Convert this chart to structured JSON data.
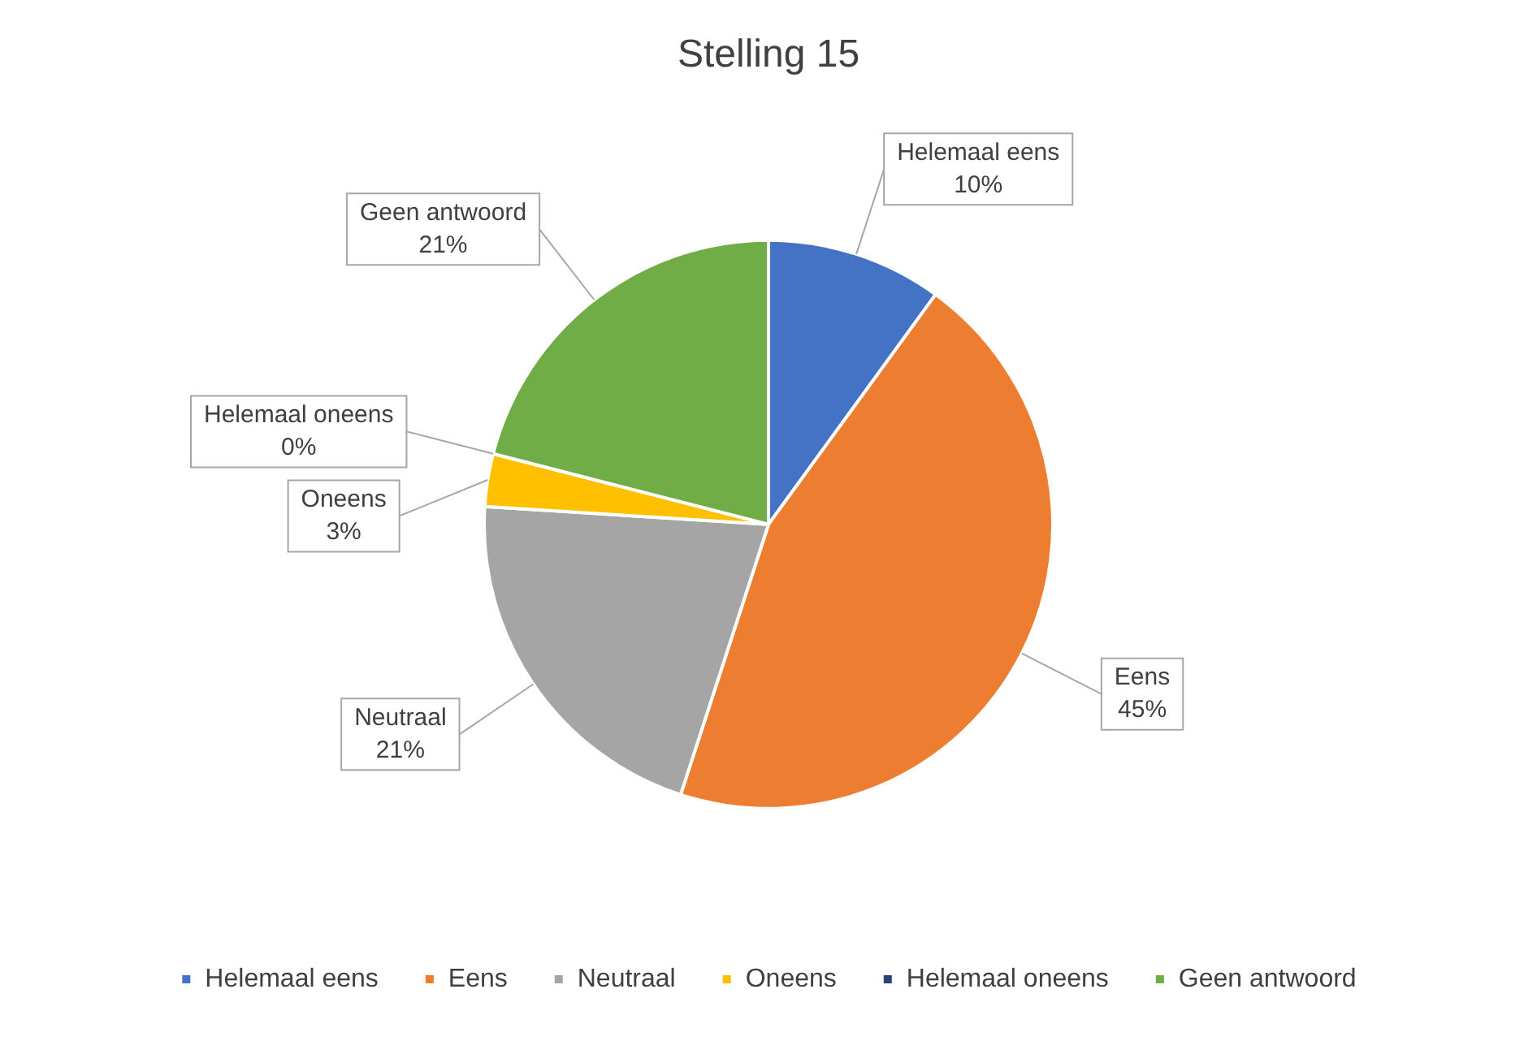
{
  "chart_data": {
    "type": "pie",
    "title": "Stelling 15",
    "categories": [
      "Helemaal eens",
      "Eens",
      "Neutraal",
      "Oneens",
      "Helemaal oneens",
      "Geen antwoord"
    ],
    "values": [
      10,
      45,
      21,
      3,
      0,
      21
    ],
    "colors": [
      "#4472c4",
      "#ed7d31",
      "#a5a5a5",
      "#ffc000",
      "#264478",
      "#70ad47"
    ],
    "value_labels": [
      "10%",
      "45%",
      "21%",
      "3%",
      "0%",
      "21%"
    ],
    "legend": "bottom"
  }
}
